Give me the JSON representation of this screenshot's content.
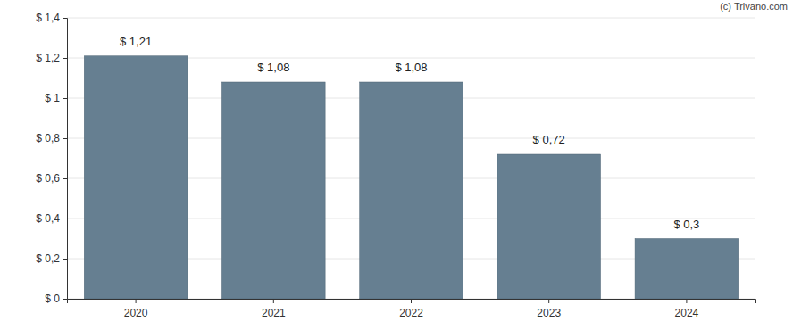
{
  "chart_data": {
    "type": "bar",
    "categories": [
      "2020",
      "2021",
      "2022",
      "2023",
      "2024"
    ],
    "values": [
      1.21,
      1.08,
      1.08,
      0.72,
      0.3
    ],
    "value_labels": [
      "$ 1,21",
      "$ 1,08",
      "$ 1,08",
      "$ 0,72",
      "$ 0,3"
    ],
    "data_labels": true,
    "color": "#667f91",
    "ylim": [
      0,
      1.4
    ],
    "yticks": [
      {
        "value": 0,
        "label": "$ 0"
      },
      {
        "value": 0.2,
        "label": "$ 0,2"
      },
      {
        "value": 0.4,
        "label": "$ 0,4"
      },
      {
        "value": 0.6,
        "label": "$ 0,6"
      },
      {
        "value": 0.8,
        "label": "$ 0,8"
      },
      {
        "value": 1,
        "label": "$ 1"
      },
      {
        "value": 1.2,
        "label": "$ 1,2"
      },
      {
        "value": 1.4,
        "label": "$ 1,4"
      }
    ],
    "grid": true,
    "annotations": [
      "(c) Trivano.com"
    ]
  }
}
